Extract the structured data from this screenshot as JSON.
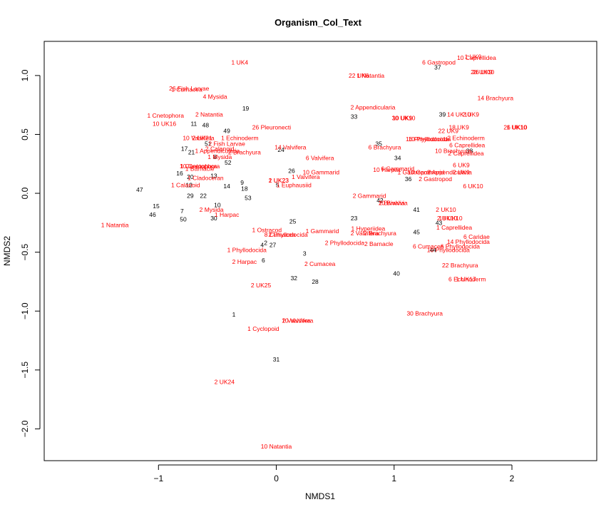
{
  "chart_data": {
    "type": "scatter",
    "title": "Organism_Col_Text",
    "xlabel": "NMDS1",
    "ylabel": "NMDS2",
    "xlim": [
      -1.97,
      2.72
    ],
    "ylim": [
      -2.27,
      1.29
    ],
    "xticks": [
      -1,
      0,
      1,
      2
    ],
    "yticks": [
      1.0,
      0.5,
      0.0,
      -0.5,
      -1.0,
      -1.5,
      -2.0
    ],
    "grid": false,
    "legend": "none",
    "colors": {
      "sites": "#000000",
      "species": "#ff0000"
    },
    "sites": [
      {
        "label": "37",
        "x": 1.37,
        "y": 1.07
      },
      {
        "label": "19",
        "x": -0.26,
        "y": 0.72
      },
      {
        "label": "33",
        "x": 0.66,
        "y": 0.65
      },
      {
        "label": "39",
        "x": 1.41,
        "y": 0.67
      },
      {
        "label": "11",
        "x": -0.7,
        "y": 0.59
      },
      {
        "label": "48",
        "x": -0.6,
        "y": 0.58
      },
      {
        "label": "49",
        "x": -0.42,
        "y": 0.53
      },
      {
        "label": "51",
        "x": -0.58,
        "y": 0.42
      },
      {
        "label": "17",
        "x": -0.78,
        "y": 0.38
      },
      {
        "label": "21",
        "x": -0.72,
        "y": 0.35
      },
      {
        "label": "24",
        "x": 0.04,
        "y": 0.37
      },
      {
        "label": "35",
        "x": 0.87,
        "y": 0.42
      },
      {
        "label": "38",
        "x": 1.64,
        "y": 0.36
      },
      {
        "label": "34",
        "x": 1.03,
        "y": 0.3
      },
      {
        "label": "8",
        "x": -0.52,
        "y": 0.31
      },
      {
        "label": "52",
        "x": -0.41,
        "y": 0.26
      },
      {
        "label": "26",
        "x": 0.13,
        "y": 0.19
      },
      {
        "label": "16",
        "x": -0.82,
        "y": 0.17
      },
      {
        "label": "20",
        "x": -0.73,
        "y": 0.14
      },
      {
        "label": "13",
        "x": -0.53,
        "y": 0.15
      },
      {
        "label": "36",
        "x": 1.12,
        "y": 0.12
      },
      {
        "label": "9",
        "x": -0.29,
        "y": 0.09
      },
      {
        "label": "12",
        "x": -0.74,
        "y": 0.07
      },
      {
        "label": "14",
        "x": -0.42,
        "y": 0.06
      },
      {
        "label": "5",
        "x": 0.01,
        "y": 0.07
      },
      {
        "label": "18",
        "x": -0.27,
        "y": 0.04
      },
      {
        "label": "47",
        "x": -1.16,
        "y": 0.03
      },
      {
        "label": "29",
        "x": -0.73,
        "y": -0.02
      },
      {
        "label": "22",
        "x": -0.62,
        "y": -0.02
      },
      {
        "label": "53",
        "x": -0.24,
        "y": -0.04
      },
      {
        "label": "42",
        "x": 0.88,
        "y": -0.06
      },
      {
        "label": "10",
        "x": -0.5,
        "y": -0.1
      },
      {
        "label": "15",
        "x": -1.02,
        "y": -0.11
      },
      {
        "label": "7",
        "x": -0.8,
        "y": -0.15
      },
      {
        "label": "41",
        "x": 1.19,
        "y": -0.14
      },
      {
        "label": "46",
        "x": -1.05,
        "y": -0.18
      },
      {
        "label": "23",
        "x": 0.66,
        "y": -0.21
      },
      {
        "label": "50",
        "x": -0.79,
        "y": -0.22
      },
      {
        "label": "30",
        "x": -0.53,
        "y": -0.21
      },
      {
        "label": "25",
        "x": 0.14,
        "y": -0.24
      },
      {
        "label": "43",
        "x": 1.38,
        "y": -0.25
      },
      {
        "label": "45",
        "x": 1.19,
        "y": -0.33
      },
      {
        "label": "4",
        "x": -0.12,
        "y": -0.44
      },
      {
        "label": "2",
        "x": -0.09,
        "y": -0.42
      },
      {
        "label": "27",
        "x": -0.03,
        "y": -0.44
      },
      {
        "label": "44",
        "x": 1.33,
        "y": -0.48
      },
      {
        "label": "3",
        "x": 0.24,
        "y": -0.51
      },
      {
        "label": "6",
        "x": -0.11,
        "y": -0.57
      },
      {
        "label": "40",
        "x": 1.02,
        "y": -0.68
      },
      {
        "label": "32",
        "x": 0.15,
        "y": -0.72
      },
      {
        "label": "28",
        "x": 0.33,
        "y": -0.75
      },
      {
        "label": "1",
        "x": -0.36,
        "y": -1.03
      },
      {
        "label": "31",
        "x": 0.0,
        "y": -1.41
      }
    ],
    "species": [
      {
        "label": "10 Caprellidea",
        "x": 1.7,
        "y": 1.15
      },
      {
        "label": "1 UK9",
        "x": 1.67,
        "y": 1.16
      },
      {
        "label": "1 UK4",
        "x": -0.31,
        "y": 1.11
      },
      {
        "label": "6 Gastropod",
        "x": 1.38,
        "y": 1.11
      },
      {
        "label": "22 UK6",
        "x": 0.7,
        "y": 1.0
      },
      {
        "label": "1 Natantia",
        "x": 0.8,
        "y": 1.0
      },
      {
        "label": "28 UK10",
        "x": 1.75,
        "y": 1.03
      },
      {
        "label": "26 UK9",
        "x": 1.75,
        "y": 1.03
      },
      {
        "label": "26 Fish Larvae",
        "x": -0.74,
        "y": 0.89
      },
      {
        "label": "1 Cumacea",
        "x": -0.76,
        "y": 0.88
      },
      {
        "label": "4 Mysida",
        "x": -0.52,
        "y": 0.82
      },
      {
        "label": "14 Brachyura",
        "x": 1.86,
        "y": 0.81
      },
      {
        "label": "2 Appendicularia",
        "x": 0.82,
        "y": 0.73
      },
      {
        "label": "1 Cnetophora",
        "x": -0.94,
        "y": 0.66
      },
      {
        "label": "2 Natantia",
        "x": -0.57,
        "y": 0.67
      },
      {
        "label": "30 UK10",
        "x": 1.08,
        "y": 0.64
      },
      {
        "label": "10 UK9",
        "x": 1.07,
        "y": 0.64
      },
      {
        "label": "14 UK10",
        "x": 1.55,
        "y": 0.67
      },
      {
        "label": "2 UK9",
        "x": 1.65,
        "y": 0.67
      },
      {
        "label": "10 UK16",
        "x": -0.95,
        "y": 0.59
      },
      {
        "label": "26 Pleuronecti",
        "x": -0.04,
        "y": 0.56
      },
      {
        "label": "18 UK9",
        "x": 1.55,
        "y": 0.56
      },
      {
        "label": "26 UK10",
        "x": 2.03,
        "y": 0.56
      },
      {
        "label": "1 UK10",
        "x": 2.04,
        "y": 0.56
      },
      {
        "label": "22 UK9",
        "x": 1.46,
        "y": 0.53
      },
      {
        "label": "10 Valvifera",
        "x": -0.66,
        "y": 0.47
      },
      {
        "label": "2 UK21",
        "x": -0.63,
        "y": 0.47
      },
      {
        "label": "1 Echinoderm",
        "x": -0.31,
        "y": 0.47
      },
      {
        "label": "2 Echinoderm",
        "x": 1.61,
        "y": 0.47
      },
      {
        "label": "16 Phyllodocida",
        "x": 1.28,
        "y": 0.46
      },
      {
        "label": "10 Phyllodocida",
        "x": 1.3,
        "y": 0.46
      },
      {
        "label": "2 Fish Larvae",
        "x": -0.42,
        "y": 0.42
      },
      {
        "label": "6 Caprellidea",
        "x": 1.62,
        "y": 0.41
      },
      {
        "label": "14 Valvifera",
        "x": 0.12,
        "y": 0.39
      },
      {
        "label": "6 Brachyura",
        "x": 0.92,
        "y": 0.39
      },
      {
        "label": "2 Calanoid",
        "x": -0.48,
        "y": 0.38
      },
      {
        "label": "1 Appendicularia",
        "x": -0.5,
        "y": 0.36
      },
      {
        "label": "2 Brachyura",
        "x": -0.27,
        "y": 0.35
      },
      {
        "label": "10 Brachyura",
        "x": 1.5,
        "y": 0.36
      },
      {
        "label": "2 Caprellidea",
        "x": 1.61,
        "y": 0.34
      },
      {
        "label": "6 Valvifera",
        "x": 0.37,
        "y": 0.3
      },
      {
        "label": "1 Mysida",
        "x": -0.48,
        "y": 0.31
      },
      {
        "label": "10 Cnetophora",
        "x": -0.65,
        "y": 0.23
      },
      {
        "label": "1 Cnetophora",
        "x": -0.66,
        "y": 0.23
      },
      {
        "label": "6 UK9",
        "x": 1.57,
        "y": 0.24
      },
      {
        "label": "1 Barnacle",
        "x": -0.65,
        "y": 0.21
      },
      {
        "label": "6 Gammarid",
        "x": 1.03,
        "y": 0.21
      },
      {
        "label": "10 Harpac",
        "x": 0.94,
        "y": 0.2
      },
      {
        "label": "10 Gammarid",
        "x": 0.38,
        "y": 0.18
      },
      {
        "label": "1 Gastropod",
        "x": 1.17,
        "y": 0.18
      },
      {
        "label": "10 Gammarid",
        "x": 1.27,
        "y": 0.18
      },
      {
        "label": "2 Appendicularia",
        "x": 1.47,
        "y": 0.18
      },
      {
        "label": "2 UK9",
        "x": 1.57,
        "y": 0.18
      },
      {
        "label": "1 Valvifera",
        "x": 0.25,
        "y": 0.14
      },
      {
        "label": "1 Cladoceran",
        "x": -0.6,
        "y": 0.13
      },
      {
        "label": "1 UK23",
        "x": 0.02,
        "y": 0.11
      },
      {
        "label": "2 UK23",
        "x": 0.02,
        "y": 0.11
      },
      {
        "label": "2 Gastropod",
        "x": 1.35,
        "y": 0.12
      },
      {
        "label": "1 Calanoid",
        "x": -0.77,
        "y": 0.07
      },
      {
        "label": "1 Euphausiid",
        "x": 0.15,
        "y": 0.07
      },
      {
        "label": "6 UK10",
        "x": 1.67,
        "y": 0.06
      },
      {
        "label": "2 Gammarid",
        "x": 0.79,
        "y": -0.02
      },
      {
        "label": "10 Bivalvia",
        "x": 0.99,
        "y": -0.08
      },
      {
        "label": "2 Bivalvia",
        "x": 0.98,
        "y": -0.08
      },
      {
        "label": "2 Mysida",
        "x": -0.55,
        "y": -0.14
      },
      {
        "label": "1 Harpac",
        "x": -0.42,
        "y": -0.18
      },
      {
        "label": "2 UK10",
        "x": 1.44,
        "y": -0.14
      },
      {
        "label": "2 UK10",
        "x": 1.45,
        "y": -0.21
      },
      {
        "label": "18 UK10",
        "x": 1.48,
        "y": -0.21
      },
      {
        "label": "1 Caprellidea",
        "x": 1.51,
        "y": -0.29
      },
      {
        "label": "1 Natantia",
        "x": -1.37,
        "y": -0.27
      },
      {
        "label": "1 Hyperiidea",
        "x": 0.78,
        "y": -0.3
      },
      {
        "label": "2 Valvifera",
        "x": 0.75,
        "y": -0.34
      },
      {
        "label": "2 Brachyura",
        "x": 0.88,
        "y": -0.34
      },
      {
        "label": "1 Ostracod",
        "x": -0.08,
        "y": -0.31
      },
      {
        "label": "1 Gammarid",
        "x": 0.39,
        "y": -0.32
      },
      {
        "label": "8 Cumacea",
        "x": 0.03,
        "y": -0.35
      },
      {
        "label": "2 Phyllodocida",
        "x": 0.1,
        "y": -0.35
      },
      {
        "label": "6 Caridae",
        "x": 1.7,
        "y": -0.37
      },
      {
        "label": "14 Phyllodocida",
        "x": 1.63,
        "y": -0.41
      },
      {
        "label": "2 Phyllodocida",
        "x": 0.58,
        "y": -0.42
      },
      {
        "label": "2 Barnacle",
        "x": 0.87,
        "y": -0.43
      },
      {
        "label": "6 Cumacea",
        "x": 1.29,
        "y": -0.45
      },
      {
        "label": "6 Phyllodocida",
        "x": 1.56,
        "y": -0.45
      },
      {
        "label": "1 Phyllodocida",
        "x": -0.25,
        "y": -0.48
      },
      {
        "label": "10 Phyllodocida",
        "x": 1.46,
        "y": -0.48
      },
      {
        "label": "2 Harpac",
        "x": -0.27,
        "y": -0.58
      },
      {
        "label": "2 Cumacea",
        "x": 0.37,
        "y": -0.6
      },
      {
        "label": "22 Brachyura",
        "x": 1.56,
        "y": -0.61
      },
      {
        "label": "6 Echinoderm",
        "x": 1.62,
        "y": -0.73
      },
      {
        "label": "1 UK17",
        "x": 1.61,
        "y": -0.73
      },
      {
        "label": "2 UK25",
        "x": -0.13,
        "y": -0.78
      },
      {
        "label": "30 Brachyura",
        "x": 1.26,
        "y": -1.02
      },
      {
        "label": "2 Valvifera",
        "x": 0.17,
        "y": -1.08
      },
      {
        "label": "10 Valvifera",
        "x": 0.18,
        "y": -1.08
      },
      {
        "label": "1 Cyclopoid",
        "x": -0.11,
        "y": -1.15
      },
      {
        "label": "2 UK24",
        "x": -0.44,
        "y": -1.6
      },
      {
        "label": "10 Natantia",
        "x": 0.0,
        "y": -2.15
      }
    ]
  }
}
